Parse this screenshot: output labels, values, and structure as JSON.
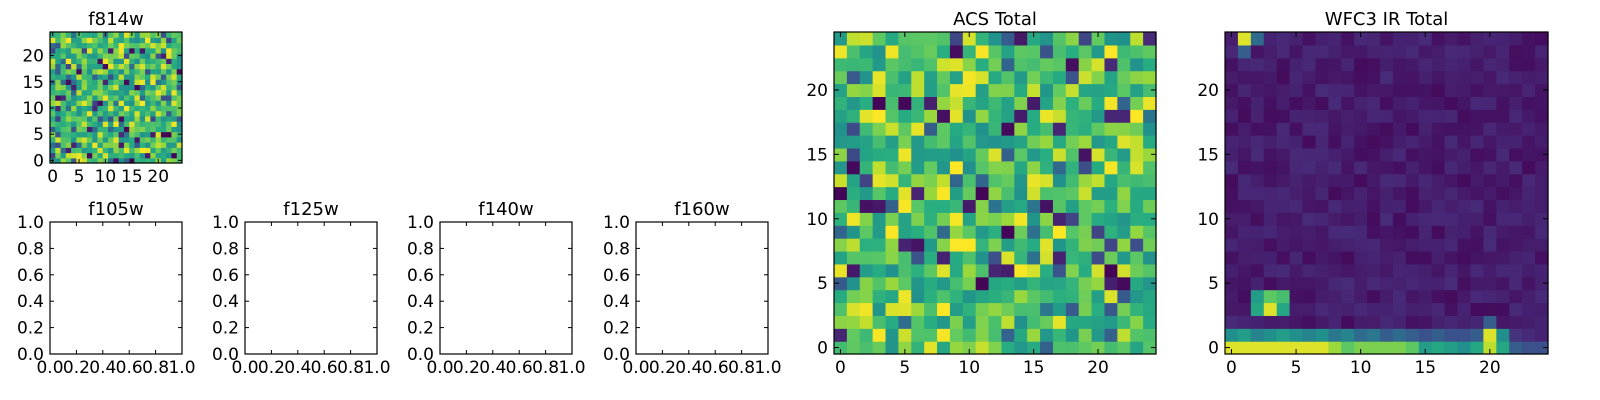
{
  "chart_data": [
    {
      "id": "f814w",
      "type": "heatmap",
      "title": "f814w",
      "grid_size": 25,
      "colormap": "viridis",
      "xlim": [
        -0.5,
        24.5
      ],
      "ylim": [
        -0.5,
        24.5
      ],
      "x_ticks": [
        0,
        5,
        10,
        15,
        20
      ],
      "y_ticks": [
        0,
        5,
        10,
        15,
        20
      ],
      "x_tick_labels": [
        "0",
        "5",
        "10",
        "15",
        "20"
      ],
      "y_tick_labels": [
        "0",
        "5",
        "10",
        "15",
        "20"
      ]
    },
    {
      "id": "f105w",
      "type": "empty",
      "title": "f105w",
      "xlim": [
        0,
        1
      ],
      "ylim": [
        0,
        1
      ],
      "x_ticks": [
        0,
        0.2,
        0.4,
        0.6,
        0.8,
        1.0
      ],
      "y_ticks": [
        0,
        0.2,
        0.4,
        0.6,
        0.8,
        1.0
      ],
      "x_tick_labels": [
        "0.0",
        "0.2",
        "0.4",
        "0.6",
        "0.8",
        "1.0"
      ],
      "y_tick_labels": [
        "0.0",
        "0.2",
        "0.4",
        "0.6",
        "0.8",
        "1.0"
      ]
    },
    {
      "id": "f125w",
      "type": "empty",
      "title": "f125w",
      "xlim": [
        0,
        1
      ],
      "ylim": [
        0,
        1
      ],
      "x_ticks": [
        0,
        0.2,
        0.4,
        0.6,
        0.8,
        1.0
      ],
      "y_ticks": [
        0,
        0.2,
        0.4,
        0.6,
        0.8,
        1.0
      ],
      "x_tick_labels": [
        "0.0",
        "0.2",
        "0.4",
        "0.6",
        "0.8",
        "1.0"
      ],
      "y_tick_labels": [
        "0.0",
        "0.2",
        "0.4",
        "0.6",
        "0.8",
        "1.0"
      ]
    },
    {
      "id": "f140w",
      "type": "empty",
      "title": "f140w",
      "xlim": [
        0,
        1
      ],
      "ylim": [
        0,
        1
      ],
      "x_ticks": [
        0,
        0.2,
        0.4,
        0.6,
        0.8,
        1.0
      ],
      "y_ticks": [
        0,
        0.2,
        0.4,
        0.6,
        0.8,
        1.0
      ],
      "x_tick_labels": [
        "0.0",
        "0.2",
        "0.4",
        "0.6",
        "0.8",
        "1.0"
      ],
      "y_tick_labels": [
        "0.0",
        "0.2",
        "0.4",
        "0.6",
        "0.8",
        "1.0"
      ]
    },
    {
      "id": "f160w",
      "type": "empty",
      "title": "f160w",
      "xlim": [
        0,
        1
      ],
      "ylim": [
        0,
        1
      ],
      "x_ticks": [
        0,
        0.2,
        0.4,
        0.6,
        0.8,
        1.0
      ],
      "y_ticks": [
        0,
        0.2,
        0.4,
        0.6,
        0.8,
        1.0
      ],
      "x_tick_labels": [
        "0.0",
        "0.2",
        "0.4",
        "0.6",
        "0.8",
        "1.0"
      ],
      "y_tick_labels": [
        "0.0",
        "0.2",
        "0.4",
        "0.6",
        "0.8",
        "1.0"
      ]
    },
    {
      "id": "acs-total",
      "type": "heatmap",
      "title": "ACS Total",
      "grid_size": 25,
      "colormap": "viridis",
      "xlim": [
        -0.5,
        24.5
      ],
      "ylim": [
        -0.5,
        24.5
      ],
      "x_ticks": [
        0,
        5,
        10,
        15,
        20
      ],
      "y_ticks": [
        0,
        5,
        10,
        15,
        20
      ],
      "x_tick_labels": [
        "0",
        "5",
        "10",
        "15",
        "20"
      ],
      "y_tick_labels": [
        "0",
        "5",
        "10",
        "15",
        "20"
      ]
    },
    {
      "id": "wfc3-ir-total",
      "type": "heatmap",
      "title": "WFC3 IR Total",
      "grid_size": 25,
      "colormap": "viridis",
      "xlim": [
        -0.5,
        24.5
      ],
      "ylim": [
        -0.5,
        24.5
      ],
      "x_ticks": [
        0,
        5,
        10,
        15,
        20
      ],
      "y_ticks": [
        0,
        5,
        10,
        15,
        20
      ],
      "x_tick_labels": [
        "0",
        "5",
        "10",
        "15",
        "20"
      ],
      "y_tick_labels": [
        "0",
        "5",
        "10",
        "15",
        "20"
      ],
      "notable_cells": [
        {
          "x": 1,
          "y": 24,
          "v": 0.95
        },
        {
          "x": 2,
          "y": 24,
          "v": 0.35
        },
        {
          "x": 1,
          "y": 23,
          "v": 0.3
        },
        {
          "x": 2,
          "y": 4,
          "v": 0.55
        },
        {
          "x": 3,
          "y": 4,
          "v": 0.75
        },
        {
          "x": 4,
          "y": 4,
          "v": 0.7
        },
        {
          "x": 2,
          "y": 3,
          "v": 0.6
        },
        {
          "x": 3,
          "y": 3,
          "v": 0.95
        },
        {
          "x": 4,
          "y": 3,
          "v": 0.6
        },
        {
          "x": 20,
          "y": 1,
          "v": 0.95
        },
        {
          "x": 21,
          "y": 1,
          "v": 0.5
        },
        {
          "x": 19,
          "y": 1,
          "v": 0.3
        },
        {
          "x": 20,
          "y": 2,
          "v": 0.3
        }
      ],
      "row1_values": [
        0.5,
        0.55,
        0.45,
        0.5,
        0.55,
        0.5,
        0.45,
        0.5,
        0.4,
        0.45,
        0.35,
        0.4,
        0.3,
        0.35,
        0.3,
        0.25,
        0.3,
        0.25,
        0.25,
        0.3,
        0.95,
        0.5,
        0.15,
        0.12,
        0.1
      ],
      "row0_values": [
        0.95,
        0.95,
        0.95,
        0.95,
        0.95,
        0.95,
        0.95,
        0.95,
        0.85,
        0.75,
        0.8,
        0.8,
        0.8,
        0.8,
        0.75,
        0.55,
        0.6,
        0.55,
        0.5,
        0.6,
        0.9,
        0.6,
        0.3,
        0.25,
        0.25
      ]
    }
  ]
}
